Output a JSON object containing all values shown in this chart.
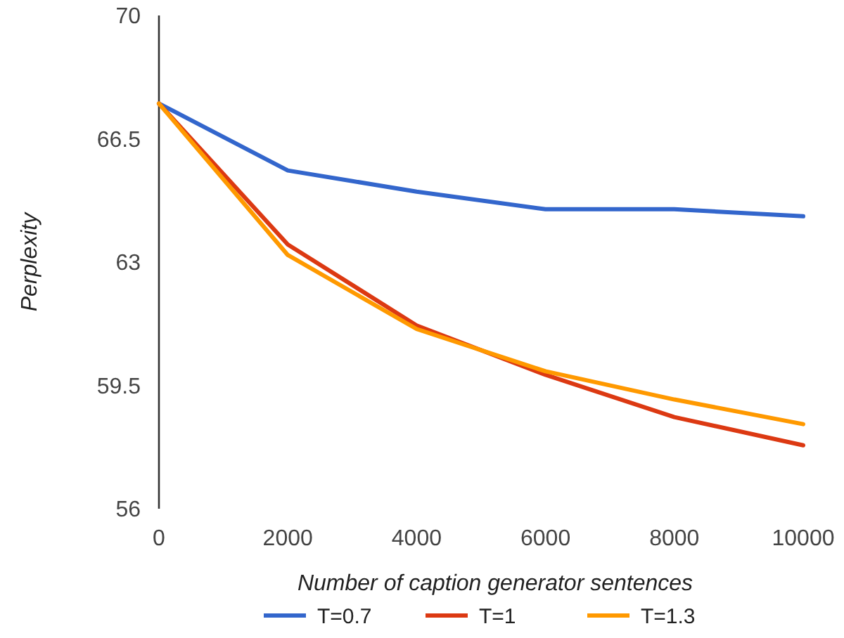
{
  "chart_data": {
    "type": "line",
    "xlabel": "Number of caption generator sentences",
    "ylabel": "Perplexity",
    "x": [
      0,
      2000,
      4000,
      6000,
      8000,
      10000
    ],
    "xlim": [
      0,
      10000
    ],
    "xticks": [
      0,
      2000,
      4000,
      6000,
      8000,
      10000
    ],
    "ylim": [
      56,
      70
    ],
    "yticks": [
      56,
      59.5,
      63,
      66.5,
      70
    ],
    "grid": false,
    "legend": "bottom",
    "marker": "none",
    "line_style": "solid",
    "series": [
      {
        "name": "T=0.7",
        "color": "#3366cc",
        "values": [
          67.5,
          65.6,
          65.0,
          64.5,
          64.5,
          64.3
        ]
      },
      {
        "name": "T=1",
        "color": "#dc3912",
        "values": [
          67.5,
          63.5,
          61.2,
          59.8,
          58.6,
          57.8
        ]
      },
      {
        "name": "T=1.3",
        "color": "#ff9900",
        "values": [
          67.5,
          63.2,
          61.1,
          59.9,
          59.1,
          58.4
        ]
      }
    ]
  }
}
